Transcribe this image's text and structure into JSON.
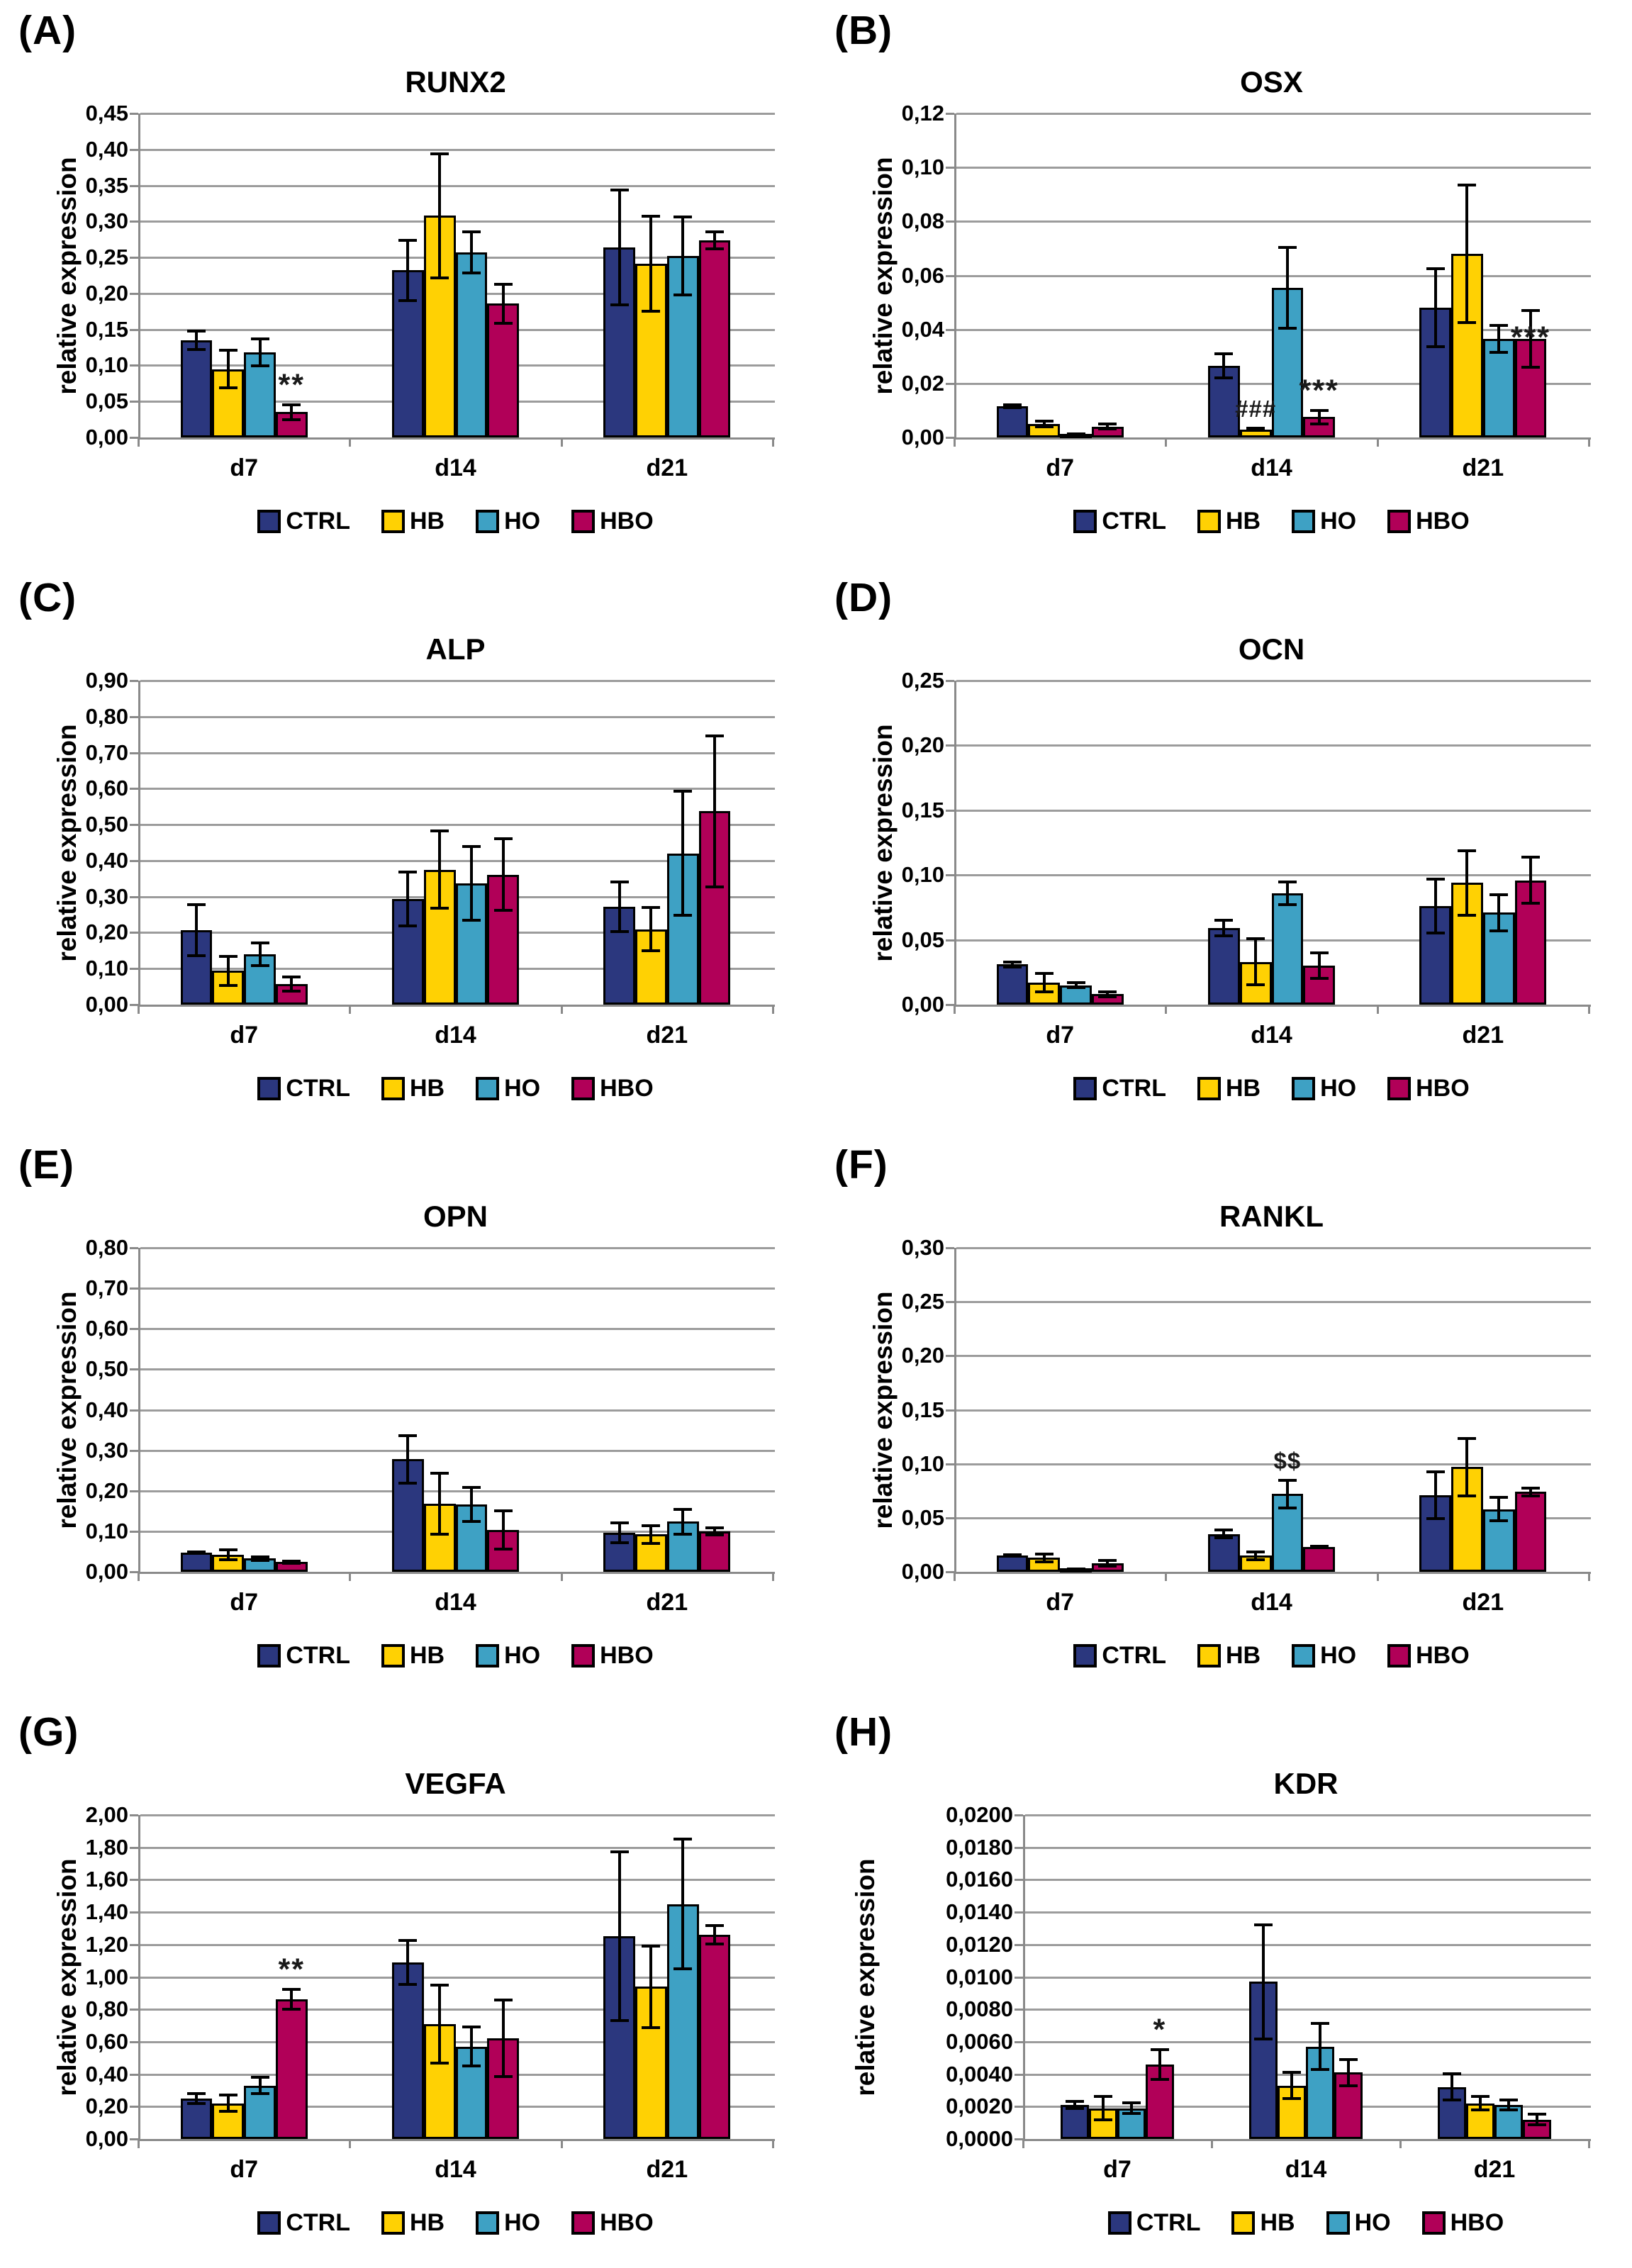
{
  "figure": {
    "y_axis_label": "relative expression",
    "categories": [
      "d7",
      "d14",
      "d21"
    ],
    "series_names": [
      "CTRL",
      "HB",
      "HO",
      "HBO"
    ],
    "colors": {
      "CTRL": "#2B377E",
      "HB": "#FFD103",
      "HO": "#3EA1C4",
      "HBO": "#B10058"
    },
    "grid_color": "#9C9C9C",
    "axis_color": "#8A8A8A"
  },
  "chart_data": [
    {
      "panel_label": "(A)",
      "type": "bar",
      "title": "RUNX2",
      "ylabel": "relative expression",
      "xlabel": "",
      "categories": [
        "d7",
        "d14",
        "d21"
      ],
      "ylim": [
        0,
        0.45
      ],
      "ytick_step": 0.05,
      "tick_decimals": 2,
      "grid": true,
      "legend_position": "bottom",
      "series": [
        {
          "name": "CTRL",
          "values": [
            0.135,
            0.232,
            0.264
          ],
          "errors": [
            0.015,
            0.044,
            0.082
          ]
        },
        {
          "name": "HB",
          "values": [
            0.095,
            0.308,
            0.241
          ],
          "errors": [
            0.028,
            0.088,
            0.068
          ]
        },
        {
          "name": "HO",
          "values": [
            0.118,
            0.257,
            0.252
          ],
          "errors": [
            0.021,
            0.031,
            0.056
          ]
        },
        {
          "name": "HBO",
          "values": [
            0.035,
            0.186,
            0.274
          ],
          "errors": [
            0.012,
            0.029,
            0.014
          ]
        }
      ],
      "annotations": [
        {
          "category": "d7",
          "series": "HBO",
          "text": "**"
        }
      ]
    },
    {
      "panel_label": "(B)",
      "type": "bar",
      "title": "OSX",
      "ylabel": "relative expression",
      "xlabel": "",
      "categories": [
        "d7",
        "d14",
        "d21"
      ],
      "ylim": [
        0,
        0.12
      ],
      "ytick_step": 0.02,
      "tick_decimals": 2,
      "grid": true,
      "legend_position": "bottom",
      "series": [
        {
          "name": "CTRL",
          "values": [
            0.0115,
            0.0265,
            0.048
          ],
          "errors": [
            0.001,
            0.005,
            0.015
          ]
        },
        {
          "name": "HB",
          "values": [
            0.005,
            0.003,
            0.068
          ],
          "errors": [
            0.0015,
            0.001,
            0.026
          ]
        },
        {
          "name": "HO",
          "values": [
            0.0012,
            0.0555,
            0.0365
          ],
          "errors": [
            0.0004,
            0.0155,
            0.0055
          ]
        },
        {
          "name": "HBO",
          "values": [
            0.004,
            0.0075,
            0.0365
          ],
          "errors": [
            0.0015,
            0.003,
            0.011
          ]
        }
      ],
      "annotations": [
        {
          "category": "d14",
          "series": "HB",
          "text": "###"
        },
        {
          "category": "d14",
          "series": "HBO",
          "text": "***"
        },
        {
          "category": "d21",
          "series": "HBO",
          "text": "***",
          "at_bar_top": true
        }
      ]
    },
    {
      "panel_label": "(C)",
      "type": "bar",
      "title": "ALP",
      "ylabel": "relative expression",
      "xlabel": "",
      "categories": [
        "d7",
        "d14",
        "d21"
      ],
      "ylim": [
        0,
        0.9
      ],
      "ytick_step": 0.1,
      "tick_decimals": 2,
      "grid": true,
      "legend_position": "bottom",
      "series": [
        {
          "name": "CTRL",
          "values": [
            0.207,
            0.294,
            0.272
          ],
          "errors": [
            0.075,
            0.079,
            0.073
          ]
        },
        {
          "name": "HB",
          "values": [
            0.094,
            0.375,
            0.209
          ],
          "errors": [
            0.044,
            0.112,
            0.064
          ]
        },
        {
          "name": "HO",
          "values": [
            0.14,
            0.337,
            0.42
          ],
          "errors": [
            0.036,
            0.107,
            0.176
          ]
        },
        {
          "name": "HBO",
          "values": [
            0.057,
            0.361,
            0.537
          ],
          "errors": [
            0.023,
            0.103,
            0.214
          ]
        }
      ],
      "annotations": []
    },
    {
      "panel_label": "(D)",
      "type": "bar",
      "title": "OCN",
      "ylabel": "relative expression",
      "xlabel": "",
      "categories": [
        "d7",
        "d14",
        "d21"
      ],
      "ylim": [
        0,
        0.25
      ],
      "ytick_step": 0.05,
      "tick_decimals": 2,
      "grid": true,
      "legend_position": "bottom",
      "series": [
        {
          "name": "CTRL",
          "values": [
            0.031,
            0.059,
            0.076
          ],
          "errors": [
            0.003,
            0.007,
            0.022
          ]
        },
        {
          "name": "HB",
          "values": [
            0.017,
            0.033,
            0.094
          ],
          "errors": [
            0.008,
            0.019,
            0.026
          ]
        },
        {
          "name": "HO",
          "values": [
            0.015,
            0.086,
            0.071
          ],
          "errors": [
            0.003,
            0.01,
            0.015
          ]
        },
        {
          "name": "HBO",
          "values": [
            0.008,
            0.03,
            0.096
          ],
          "errors": [
            0.003,
            0.011,
            0.019
          ]
        }
      ],
      "annotations": []
    },
    {
      "panel_label": "(E)",
      "type": "bar",
      "title": "OPN",
      "ylabel": "relative expression",
      "xlabel": "",
      "categories": [
        "d7",
        "d14",
        "d21"
      ],
      "ylim": [
        0,
        0.8
      ],
      "ytick_step": 0.1,
      "tick_decimals": 2,
      "grid": true,
      "legend_position": "bottom",
      "series": [
        {
          "name": "CTRL",
          "values": [
            0.048,
            0.278,
            0.097
          ],
          "errors": [
            0.005,
            0.062,
            0.028
          ]
        },
        {
          "name": "HB",
          "values": [
            0.042,
            0.168,
            0.092
          ],
          "errors": [
            0.015,
            0.078,
            0.026
          ]
        },
        {
          "name": "HO",
          "values": [
            0.033,
            0.166,
            0.124
          ],
          "errors": [
            0.008,
            0.046,
            0.034
          ]
        },
        {
          "name": "HBO",
          "values": [
            0.024,
            0.103,
            0.1
          ],
          "errors": [
            0.006,
            0.051,
            0.012
          ]
        }
      ],
      "annotations": []
    },
    {
      "panel_label": "(F)",
      "type": "bar",
      "title": "RANKL",
      "ylabel": "relative expression",
      "xlabel": "",
      "categories": [
        "d7",
        "d14",
        "d21"
      ],
      "ylim": [
        0,
        0.3
      ],
      "ytick_step": 0.05,
      "tick_decimals": 2,
      "grid": true,
      "legend_position": "bottom",
      "series": [
        {
          "name": "CTRL",
          "values": [
            0.015,
            0.035,
            0.071
          ],
          "errors": [
            0.002,
            0.005,
            0.023
          ]
        },
        {
          "name": "HB",
          "values": [
            0.013,
            0.015,
            0.097
          ],
          "errors": [
            0.005,
            0.005,
            0.028
          ]
        },
        {
          "name": "HO",
          "values": [
            0.002,
            0.072,
            0.058
          ],
          "errors": [
            0.001,
            0.014,
            0.012
          ]
        },
        {
          "name": "HBO",
          "values": [
            0.008,
            0.023,
            0.074
          ],
          "errors": [
            0.004,
            0.002,
            0.005
          ]
        }
      ],
      "annotations": [
        {
          "category": "d14",
          "series": "HO",
          "text": "$$"
        }
      ]
    },
    {
      "panel_label": "(G)",
      "type": "bar",
      "title": "VEGFA",
      "ylabel": "relative expression",
      "xlabel": "",
      "categories": [
        "d7",
        "d14",
        "d21"
      ],
      "ylim": [
        0,
        2.0
      ],
      "ytick_step": 0.2,
      "tick_decimals": 2,
      "grid": true,
      "legend_position": "bottom",
      "series": [
        {
          "name": "CTRL",
          "values": [
            0.25,
            1.09,
            1.25
          ],
          "errors": [
            0.04,
            0.145,
            0.53
          ]
        },
        {
          "name": "HB",
          "values": [
            0.22,
            0.71,
            0.94
          ],
          "errors": [
            0.06,
            0.25,
            0.26
          ]
        },
        {
          "name": "HO",
          "values": [
            0.33,
            0.57,
            1.45
          ],
          "errors": [
            0.06,
            0.13,
            0.41
          ]
        },
        {
          "name": "HBO",
          "values": [
            0.86,
            0.62,
            1.26
          ],
          "errors": [
            0.07,
            0.245,
            0.065
          ]
        }
      ],
      "annotations": [
        {
          "category": "d7",
          "series": "HBO",
          "text": "**"
        }
      ]
    },
    {
      "panel_label": "(H)",
      "type": "bar",
      "title": "KDR",
      "ylabel": "relative expression",
      "xlabel": "",
      "categories": [
        "d7",
        "d14",
        "d21"
      ],
      "ylim": [
        0,
        0.02
      ],
      "ytick_step": 0.002,
      "tick_decimals": 4,
      "grid": true,
      "legend_position": "bottom",
      "series": [
        {
          "name": "CTRL",
          "values": [
            0.0021,
            0.0097,
            0.0032
          ],
          "errors": [
            0.0003,
            0.0036,
            0.0009
          ]
        },
        {
          "name": "HB",
          "values": [
            0.0019,
            0.0033,
            0.0022
          ],
          "errors": [
            0.0008,
            0.0009,
            0.0005
          ]
        },
        {
          "name": "HO",
          "values": [
            0.0019,
            0.0057,
            0.0021
          ],
          "errors": [
            0.0004,
            0.0015,
            0.0004
          ]
        },
        {
          "name": "HBO",
          "values": [
            0.0046,
            0.0041,
            0.0012
          ],
          "errors": [
            0.001,
            0.0009,
            0.0004
          ]
        }
      ],
      "annotations": [
        {
          "category": "d7",
          "series": "HBO",
          "text": "*"
        }
      ]
    }
  ]
}
